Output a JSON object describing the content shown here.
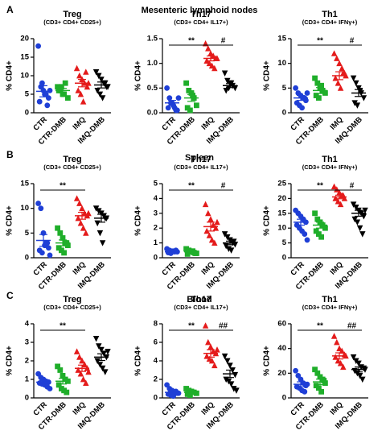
{
  "panel_labels": [
    {
      "letter": "A",
      "title": "Mesenteric lymphoid nodes"
    },
    {
      "letter": "B",
      "title": "Spleen"
    },
    {
      "letter": "C",
      "title": "Blood"
    }
  ],
  "chart_data": [
    {
      "type": "dot",
      "title": "Treg",
      "subtitle": "(CD3+ CD4+ CD25+)",
      "ylabel": "% CD4+",
      "categories": [
        "CTR",
        "CTR-DMB",
        "IMQ",
        "IMQ-DMB"
      ],
      "colors": [
        "#1f3fd6",
        "#1fae2a",
        "#e41b1b",
        "#000000"
      ],
      "markers": [
        "circle",
        "square",
        "triangle",
        "triangle-down"
      ],
      "values": [
        [
          18,
          7,
          6,
          5,
          4,
          3,
          8,
          5,
          2,
          6
        ],
        [
          7,
          6,
          5,
          8,
          4,
          6,
          7,
          5
        ],
        [
          12,
          10,
          9,
          8,
          7,
          6,
          5,
          3,
          11,
          8
        ],
        [
          11,
          10,
          9,
          8,
          7,
          6,
          5,
          4,
          8,
          7
        ]
      ],
      "means": [
        5.8,
        6,
        8,
        7.5
      ],
      "errors": [
        1.5,
        0.6,
        1,
        0.8
      ],
      "ylim": [
        0,
        20
      ],
      "yticks": [
        0,
        5,
        10,
        15,
        20
      ],
      "brackets": []
    },
    {
      "type": "dot",
      "title": "Th17",
      "subtitle": "(CD3+ CD4+ IL17+)",
      "ylabel": "% CD4+",
      "categories": [
        "CTR",
        "CTR-DMB",
        "IMQ",
        "IMQ-DMB"
      ],
      "colors": [
        "#1f3fd6",
        "#1fae2a",
        "#e41b1b",
        "#000000"
      ],
      "markers": [
        "circle",
        "square",
        "triangle",
        "triangle-down"
      ],
      "values": [
        [
          0.5,
          0.3,
          0.2,
          0.1,
          0.05,
          0.1,
          0.2,
          0.15,
          0.05,
          0.3
        ],
        [
          0.6,
          0.45,
          0.4,
          0.3,
          0.15,
          0.1,
          0.05,
          0.35
        ],
        [
          1.4,
          1.3,
          1.2,
          1.15,
          1.1,
          1.05,
          1.0,
          0.95,
          0.9,
          1.1
        ],
        [
          0.8,
          0.65,
          0.6,
          0.55,
          0.5,
          0.45,
          0.5,
          0.6
        ]
      ],
      "means": [
        0.2,
        0.3,
        1.1,
        0.55
      ],
      "errors": [
        0.05,
        0.07,
        0.05,
        0.04
      ],
      "ylim": [
        0,
        1.5
      ],
      "yticks": [
        {
          "value": 0,
          "label": "0.0"
        },
        {
          "value": 0.5,
          "label": "0.5"
        },
        {
          "value": 1,
          "label": "1.0"
        },
        {
          "value": 1.5,
          "label": "1.5"
        }
      ],
      "brackets": [
        {
          "from": 0,
          "to": 2,
          "label": "**"
        },
        {
          "from": 2,
          "to": 3,
          "label": "#"
        }
      ]
    },
    {
      "type": "dot",
      "title": "Th1",
      "subtitle": "(CD3+ CD4+ IFNγ+)",
      "ylabel": "% CD4+",
      "categories": [
        "CTR",
        "CTR-DMB",
        "IMQ",
        "IMQ-DMB"
      ],
      "colors": [
        "#1f3fd6",
        "#1fae2a",
        "#e41b1b",
        "#000000"
      ],
      "markers": [
        "circle",
        "square",
        "triangle",
        "triangle-down"
      ],
      "values": [
        [
          5,
          4,
          3.5,
          3,
          2.5,
          2,
          1.5,
          1,
          3,
          4
        ],
        [
          7,
          6,
          5,
          4.5,
          4,
          3.5,
          3,
          5.5
        ],
        [
          12,
          11,
          10,
          9,
          8,
          7,
          6,
          5,
          8,
          7.5
        ],
        [
          7,
          6,
          5,
          4,
          3,
          2,
          1.5,
          4.5
        ]
      ],
      "means": [
        3,
        4.5,
        7.5,
        4
      ],
      "errors": [
        0.5,
        0.6,
        0.8,
        0.7
      ],
      "ylim": [
        0,
        15
      ],
      "yticks": [
        0,
        5,
        10,
        15
      ],
      "brackets": [
        {
          "from": 0,
          "to": 2,
          "label": "**"
        },
        {
          "from": 2,
          "to": 3,
          "label": "#"
        }
      ]
    },
    {
      "type": "dot",
      "title": "Treg",
      "subtitle": "(CD3+ CD4+ CD25+)",
      "ylabel": "% CD4+",
      "categories": [
        "CTR",
        "CTR-DMB",
        "IMQ",
        "IMQ-DMB"
      ],
      "colors": [
        "#1f3fd6",
        "#1fae2a",
        "#e41b1b",
        "#000000"
      ],
      "markers": [
        "circle",
        "square",
        "triangle",
        "triangle-down"
      ],
      "values": [
        [
          11,
          10,
          5,
          3,
          2,
          1.5,
          1,
          2.5,
          3,
          0.5
        ],
        [
          6,
          5,
          4,
          3,
          2.5,
          2,
          1.5,
          1,
          3
        ],
        [
          12,
          11,
          10,
          9,
          8.5,
          8,
          7,
          6,
          5,
          9
        ],
        [
          10,
          9.5,
          9,
          8.5,
          8,
          7,
          5,
          3,
          8
        ]
      ],
      "means": [
        3.5,
        3,
        8.5,
        8
      ],
      "errors": [
        1.2,
        0.6,
        0.7,
        0.8
      ],
      "ylim": [
        0,
        15
      ],
      "yticks": [
        0,
        5,
        10,
        15
      ],
      "brackets": [
        {
          "from": 0,
          "to": 2,
          "label": "**"
        }
      ]
    },
    {
      "type": "dot",
      "title": "Th17",
      "subtitle": "(CD3+ CD4+ IL17+)",
      "ylabel": "% CD4+",
      "categories": [
        "CTR",
        "CTR-DMB",
        "IMQ",
        "IMQ-DMB"
      ],
      "colors": [
        "#1f3fd6",
        "#1fae2a",
        "#e41b1b",
        "#000000"
      ],
      "markers": [
        "circle",
        "square",
        "triangle",
        "triangle-down"
      ],
      "values": [
        [
          0.6,
          0.5,
          0.45,
          0.4,
          0.4,
          0.35,
          0.3,
          0.45,
          0.5
        ],
        [
          0.6,
          0.5,
          0.4,
          0.35,
          0.3,
          0.25,
          0.4,
          0.45,
          0.3
        ],
        [
          3.6,
          3.0,
          2.6,
          2.2,
          2.0,
          1.8,
          1.5,
          1.2,
          1.0,
          2.4
        ],
        [
          1.6,
          1.4,
          1.2,
          1.0,
          0.9,
          0.8,
          0.6,
          0.5,
          1.1
        ]
      ],
      "means": [
        0.4,
        0.4,
        2.1,
        1.0
      ],
      "errors": [
        0.03,
        0.04,
        0.3,
        0.12
      ],
      "ylim": [
        0,
        5
      ],
      "yticks": [
        0,
        1,
        2,
        3,
        4,
        5
      ],
      "brackets": [
        {
          "from": 0,
          "to": 2,
          "label": "**"
        },
        {
          "from": 2,
          "to": 3,
          "label": "#"
        }
      ]
    },
    {
      "type": "dot",
      "title": "Th1",
      "subtitle": "(CD3+ CD4+ IFNγ+)",
      "ylabel": "% CD4+",
      "categories": [
        "CTR",
        "CTR-DMB",
        "IMQ",
        "IMQ-DMB"
      ],
      "colors": [
        "#1f3fd6",
        "#1fae2a",
        "#e41b1b",
        "#000000"
      ],
      "markers": [
        "circle",
        "square",
        "triangle",
        "triangle-down"
      ],
      "values": [
        [
          16,
          15,
          14,
          13,
          12,
          11,
          10,
          9,
          8,
          6
        ],
        [
          15,
          13,
          12,
          11,
          10,
          9,
          8,
          7
        ],
        [
          24,
          23,
          22,
          21,
          20,
          20,
          19,
          18,
          21
        ],
        [
          18,
          17,
          16,
          15,
          14,
          13,
          12,
          10,
          8,
          16
        ]
      ],
      "means": [
        12,
        11,
        20.5,
        15
      ],
      "errors": [
        1,
        1,
        0.6,
        1
      ],
      "ylim": [
        0,
        25
      ],
      "yticks": [
        0,
        5,
        10,
        15,
        20,
        25
      ],
      "brackets": [
        {
          "from": 0,
          "to": 2,
          "label": "**"
        },
        {
          "from": 2,
          "to": 3,
          "label": "#"
        }
      ]
    },
    {
      "type": "dot",
      "title": "Treg",
      "subtitle": "(CD3+ CD4+ CD25+)",
      "ylabel": "% CD4+",
      "categories": [
        "CTR",
        "CTR-DMB",
        "IMQ",
        "IMQ-DMB"
      ],
      "colors": [
        "#1f3fd6",
        "#1fae2a",
        "#e41b1b",
        "#000000"
      ],
      "markers": [
        "circle",
        "square",
        "triangle",
        "triangle-down"
      ],
      "values": [
        [
          1.3,
          1.1,
          1.0,
          0.9,
          0.85,
          0.8,
          0.75,
          0.7,
          0.6,
          0.5
        ],
        [
          1.7,
          1.5,
          1.2,
          1.0,
          0.9,
          0.7,
          0.5,
          0.4,
          0.3
        ],
        [
          2.5,
          2.2,
          2.0,
          1.8,
          1.6,
          1.5,
          1.3,
          1.0,
          0.8,
          1.4
        ],
        [
          3.2,
          2.8,
          2.6,
          2.4,
          2.2,
          2.0,
          1.8,
          1.6,
          1.4,
          2.5
        ]
      ],
      "means": [
        0.85,
        0.9,
        1.6,
        2.2
      ],
      "errors": [
        0.08,
        0.15,
        0.17,
        0.18
      ],
      "ylim": [
        0,
        4
      ],
      "yticks": [
        0,
        1,
        2,
        3,
        4
      ],
      "brackets": [
        {
          "from": 0,
          "to": 2,
          "label": "**"
        }
      ]
    },
    {
      "type": "dot",
      "title": "Th17",
      "subtitle": "(CD3+ CD4+ IL17+)",
      "ylabel": "% CD4+",
      "categories": [
        "CTR",
        "CTR-DMB",
        "IMQ",
        "IMQ-DMB"
      ],
      "colors": [
        "#1f3fd6",
        "#1fae2a",
        "#e41b1b",
        "#000000"
      ],
      "markers": [
        "circle",
        "square",
        "triangle",
        "triangle-down"
      ],
      "values": [
        [
          1.4,
          1.0,
          0.8,
          0.6,
          0.5,
          0.4,
          0.3,
          0.2,
          0.7,
          0.5
        ],
        [
          1.0,
          0.8,
          0.7,
          0.6,
          0.5,
          0.4,
          0.3,
          0.6
        ],
        [
          7.8,
          6,
          5.5,
          5,
          4.8,
          4.5,
          4.2,
          4,
          3.5,
          5.2
        ],
        [
          4.5,
          4,
          3.5,
          3,
          2.5,
          2,
          1.8,
          1.5,
          1,
          0.8
        ]
      ],
      "means": [
        0.6,
        0.6,
        4.8,
        2.6
      ],
      "errors": [
        0.1,
        0.08,
        0.4,
        0.4
      ],
      "ylim": [
        0,
        8
      ],
      "yticks": [
        0,
        2,
        4,
        6,
        8
      ],
      "brackets": [
        {
          "from": 0,
          "to": 2,
          "label": "**"
        },
        {
          "from": 2,
          "to": 3,
          "label": "##"
        }
      ]
    },
    {
      "type": "dot",
      "title": "Th1",
      "subtitle": "(CD3+ CD4+ IFNγ+)",
      "ylabel": "% CD4+",
      "categories": [
        "CTR",
        "CTR-DMB",
        "IMQ",
        "IMQ-DMB"
      ],
      "colors": [
        "#1f3fd6",
        "#1fae2a",
        "#e41b1b",
        "#000000"
      ],
      "markers": [
        "circle",
        "square",
        "triangle",
        "triangle-down"
      ],
      "values": [
        [
          22,
          18,
          15,
          12,
          10,
          9,
          8,
          6,
          5,
          11
        ],
        [
          23,
          20,
          17,
          15,
          12,
          10,
          8,
          5,
          14
        ],
        [
          50,
          45,
          40,
          38,
          35,
          33,
          30,
          28,
          25,
          34
        ],
        [
          33,
          30,
          28,
          25,
          24,
          22,
          20,
          18,
          15,
          23
        ]
      ],
      "means": [
        11,
        13,
        34,
        23
      ],
      "errors": [
        2,
        2.2,
        2.5,
        2
      ],
      "ylim": [
        0,
        60
      ],
      "yticks": [
        0,
        20,
        40,
        60
      ],
      "brackets": [
        {
          "from": 0,
          "to": 2,
          "label": "**"
        },
        {
          "from": 2,
          "to": 3,
          "label": "##"
        }
      ]
    }
  ]
}
